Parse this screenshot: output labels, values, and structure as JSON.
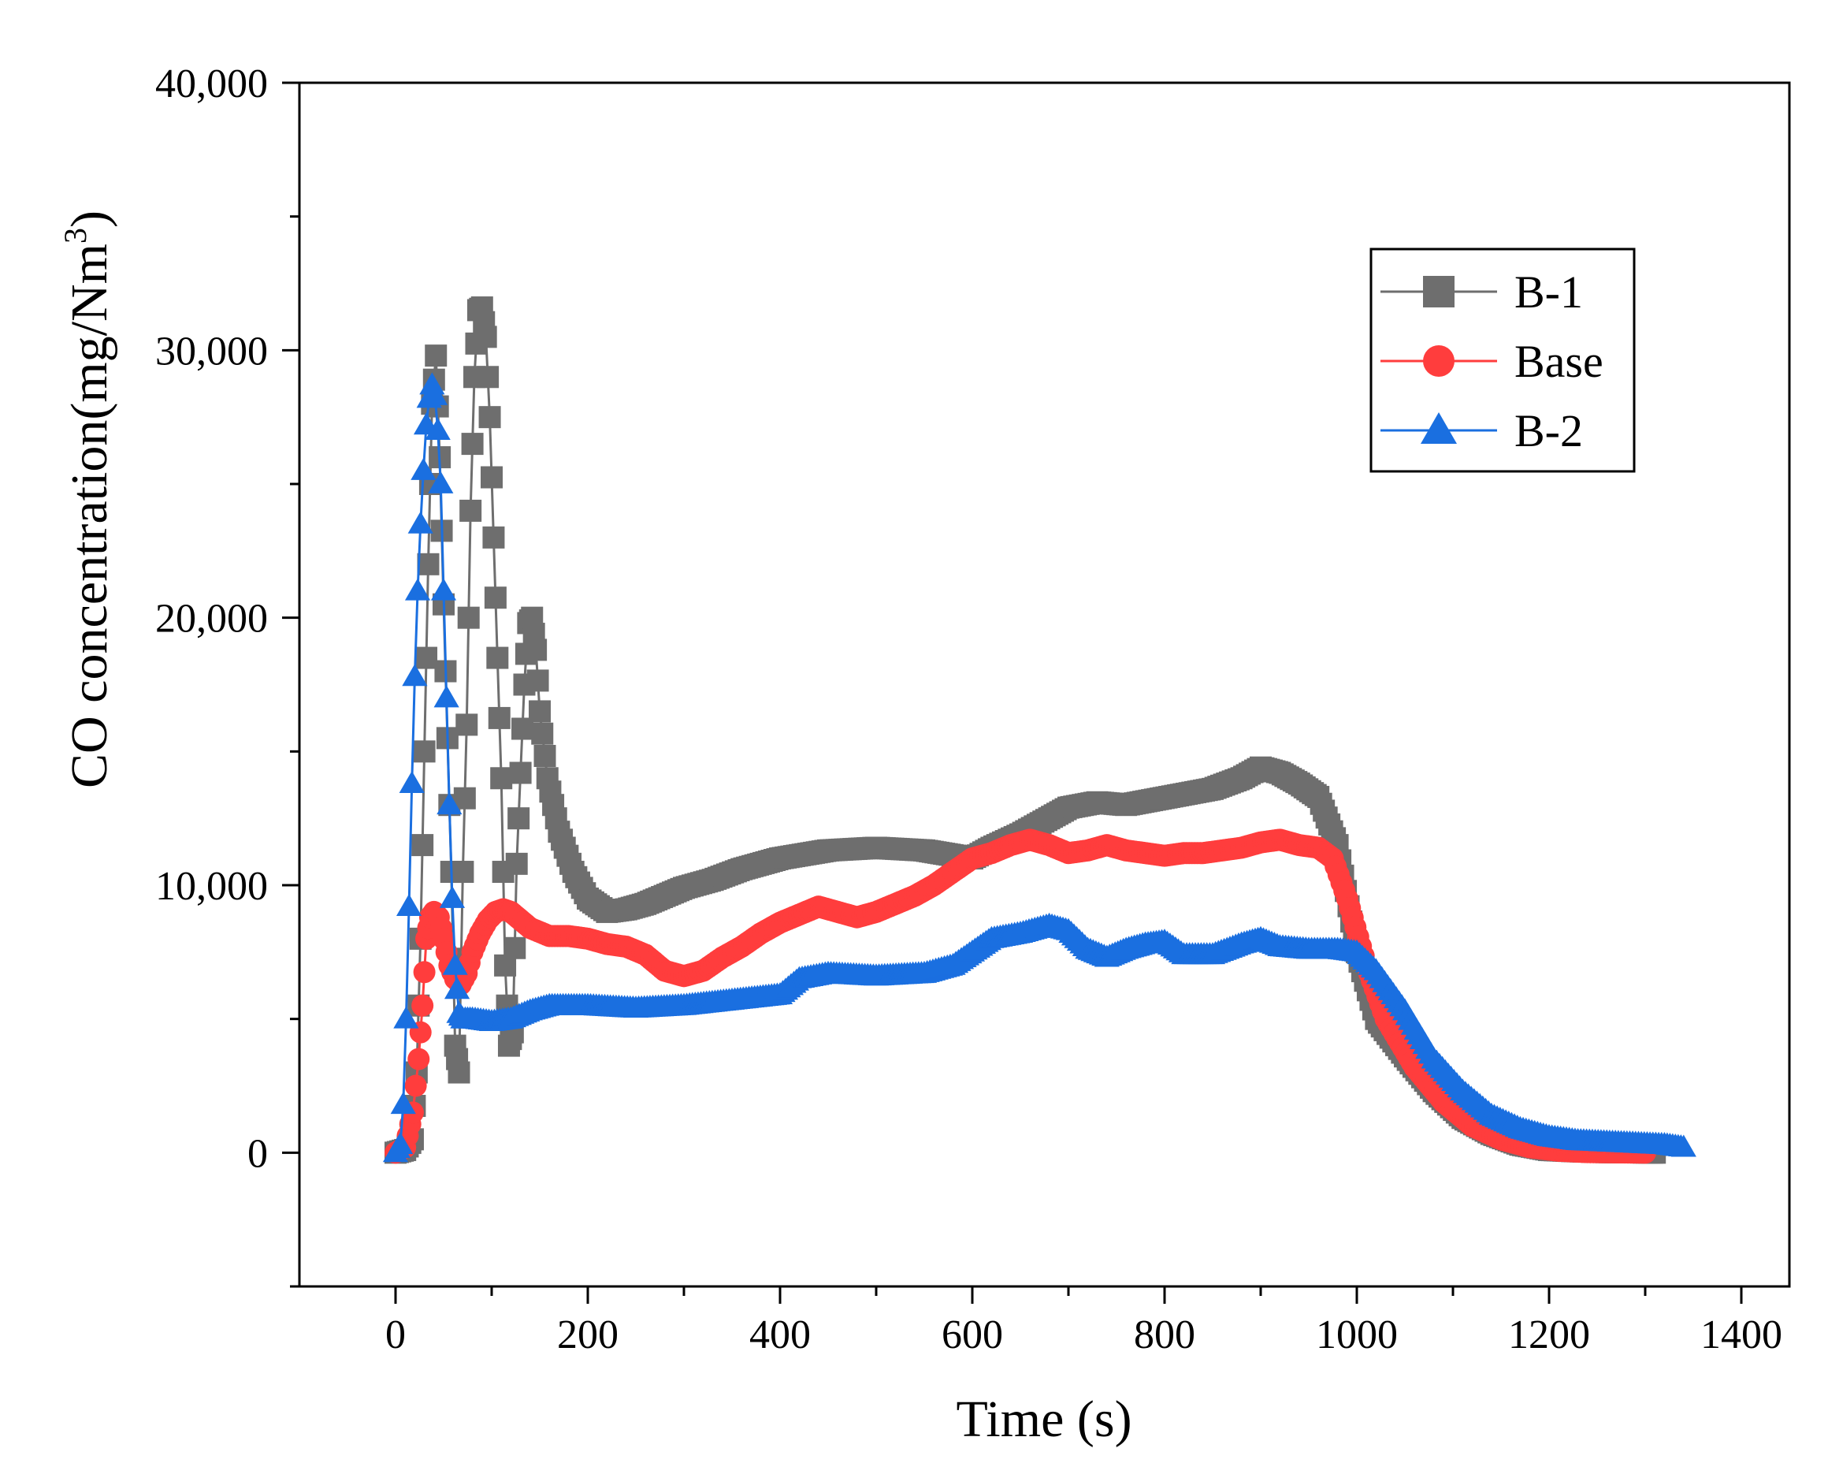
{
  "chart_data": {
    "type": "scatter",
    "title": "",
    "xlabel": "Time (s)",
    "ylabel": "CO concentration(mg/Nm",
    "ylabel_sup": "3",
    "ylabel_close": ")",
    "xlim": [
      -100,
      1450
    ],
    "ylim": [
      -5000,
      40000
    ],
    "x_ticks": [
      0,
      200,
      400,
      600,
      800,
      1000,
      1200,
      1400
    ],
    "x_tick_labels": [
      "0",
      "200",
      "400",
      "600",
      "800",
      "1000",
      "1200",
      "1400"
    ],
    "y_ticks": [
      0,
      10000,
      20000,
      30000,
      40000
    ],
    "y_tick_labels": [
      "0",
      "10,000",
      "20,000",
      "30,000",
      "40,000"
    ],
    "grid": false,
    "legend_position": "top-right",
    "series": [
      {
        "name": "B-1",
        "marker": "square",
        "color": "#6e6e6e",
        "points": [
          [
            0,
            0
          ],
          [
            10,
            100
          ],
          [
            18,
            500
          ],
          [
            22,
            3000
          ],
          [
            26,
            8000
          ],
          [
            30,
            15000
          ],
          [
            34,
            22000
          ],
          [
            38,
            28000
          ],
          [
            42,
            29800
          ],
          [
            46,
            26000
          ],
          [
            50,
            20500
          ],
          [
            54,
            15500
          ],
          [
            58,
            10500
          ],
          [
            62,
            4000
          ],
          [
            66,
            3000
          ],
          [
            70,
            10500
          ],
          [
            74,
            16000
          ],
          [
            78,
            24000
          ],
          [
            82,
            29000
          ],
          [
            86,
            31500
          ],
          [
            90,
            31600
          ],
          [
            94,
            30500
          ],
          [
            98,
            27500
          ],
          [
            102,
            23000
          ],
          [
            106,
            18500
          ],
          [
            110,
            14000
          ],
          [
            114,
            7000
          ],
          [
            118,
            4000
          ],
          [
            122,
            4500
          ],
          [
            126,
            10800
          ],
          [
            130,
            14200
          ],
          [
            134,
            17500
          ],
          [
            138,
            19800
          ],
          [
            142,
            20000
          ],
          [
            146,
            18800
          ],
          [
            150,
            16500
          ],
          [
            158,
            14000
          ],
          [
            170,
            12000
          ],
          [
            185,
            10500
          ],
          [
            200,
            9500
          ],
          [
            220,
            9000
          ],
          [
            240,
            9100
          ],
          [
            260,
            9300
          ],
          [
            280,
            9600
          ],
          [
            300,
            9900
          ],
          [
            330,
            10200
          ],
          [
            360,
            10600
          ],
          [
            400,
            11000
          ],
          [
            450,
            11300
          ],
          [
            500,
            11400
          ],
          [
            550,
            11300
          ],
          [
            600,
            11000
          ],
          [
            620,
            11400
          ],
          [
            650,
            11900
          ],
          [
            680,
            12500
          ],
          [
            700,
            12900
          ],
          [
            730,
            13100
          ],
          [
            760,
            13000
          ],
          [
            790,
            13200
          ],
          [
            820,
            13400
          ],
          [
            850,
            13600
          ],
          [
            880,
            14000
          ],
          [
            900,
            14400
          ],
          [
            920,
            14200
          ],
          [
            940,
            13800
          ],
          [
            960,
            13300
          ],
          [
            980,
            11500
          ],
          [
            1000,
            7500
          ],
          [
            1020,
            5000
          ],
          [
            1050,
            3600
          ],
          [
            1080,
            2300
          ],
          [
            1110,
            1300
          ],
          [
            1140,
            700
          ],
          [
            1170,
            300
          ],
          [
            1200,
            100
          ],
          [
            1230,
            50
          ],
          [
            1260,
            20
          ],
          [
            1290,
            10
          ],
          [
            1310,
            0
          ]
        ]
      },
      {
        "name": "Base",
        "marker": "circle",
        "color": "#ff3d3d",
        "points": [
          [
            0,
            0
          ],
          [
            10,
            200
          ],
          [
            18,
            1500
          ],
          [
            24,
            3500
          ],
          [
            28,
            5500
          ],
          [
            32,
            8000
          ],
          [
            36,
            8800
          ],
          [
            40,
            9000
          ],
          [
            45,
            8800
          ],
          [
            50,
            8000
          ],
          [
            56,
            7000
          ],
          [
            62,
            6500
          ],
          [
            68,
            6300
          ],
          [
            74,
            6700
          ],
          [
            80,
            7500
          ],
          [
            88,
            8200
          ],
          [
            96,
            8700
          ],
          [
            104,
            9000
          ],
          [
            112,
            9100
          ],
          [
            120,
            9000
          ],
          [
            130,
            8700
          ],
          [
            140,
            8400
          ],
          [
            160,
            8100
          ],
          [
            180,
            8100
          ],
          [
            200,
            8000
          ],
          [
            220,
            7800
          ],
          [
            240,
            7700
          ],
          [
            260,
            7400
          ],
          [
            280,
            6800
          ],
          [
            300,
            6600
          ],
          [
            320,
            6800
          ],
          [
            340,
            7300
          ],
          [
            360,
            7700
          ],
          [
            380,
            8200
          ],
          [
            400,
            8600
          ],
          [
            420,
            8900
          ],
          [
            440,
            9200
          ],
          [
            460,
            9000
          ],
          [
            480,
            8800
          ],
          [
            500,
            9000
          ],
          [
            520,
            9300
          ],
          [
            540,
            9600
          ],
          [
            560,
            10000
          ],
          [
            580,
            10500
          ],
          [
            600,
            11000
          ],
          [
            620,
            11200
          ],
          [
            640,
            11500
          ],
          [
            660,
            11700
          ],
          [
            680,
            11500
          ],
          [
            700,
            11200
          ],
          [
            720,
            11300
          ],
          [
            740,
            11500
          ],
          [
            760,
            11300
          ],
          [
            780,
            11200
          ],
          [
            800,
            11100
          ],
          [
            820,
            11200
          ],
          [
            840,
            11200
          ],
          [
            860,
            11300
          ],
          [
            880,
            11400
          ],
          [
            900,
            11600
          ],
          [
            920,
            11700
          ],
          [
            940,
            11500
          ],
          [
            960,
            11400
          ],
          [
            975,
            11000
          ],
          [
            990,
            9500
          ],
          [
            1010,
            7000
          ],
          [
            1030,
            5000
          ],
          [
            1060,
            3200
          ],
          [
            1090,
            1900
          ],
          [
            1120,
            1000
          ],
          [
            1150,
            500
          ],
          [
            1180,
            200
          ],
          [
            1210,
            70
          ],
          [
            1240,
            20
          ],
          [
            1270,
            10
          ],
          [
            1300,
            0
          ]
        ]
      },
      {
        "name": "B-2",
        "marker": "triangle",
        "color": "#1a6fe0",
        "points": [
          [
            0,
            0
          ],
          [
            5,
            300
          ],
          [
            8,
            1800
          ],
          [
            11,
            5000
          ],
          [
            14,
            9200
          ],
          [
            17,
            13800
          ],
          [
            20,
            17800
          ],
          [
            23,
            21000
          ],
          [
            26,
            23500
          ],
          [
            29,
            25500
          ],
          [
            32,
            27200
          ],
          [
            35,
            28200
          ],
          [
            38,
            28700
          ],
          [
            41,
            28300
          ],
          [
            44,
            27000
          ],
          [
            47,
            25000
          ],
          [
            50,
            21000
          ],
          [
            53,
            17000
          ],
          [
            56,
            13000
          ],
          [
            59,
            9500
          ],
          [
            62,
            7000
          ],
          [
            66,
            5200
          ],
          [
            70,
            5000
          ],
          [
            80,
            5000
          ],
          [
            100,
            4900
          ],
          [
            120,
            5000
          ],
          [
            140,
            5300
          ],
          [
            160,
            5500
          ],
          [
            200,
            5500
          ],
          [
            250,
            5400
          ],
          [
            300,
            5500
          ],
          [
            350,
            5700
          ],
          [
            400,
            5900
          ],
          [
            420,
            6500
          ],
          [
            450,
            6700
          ],
          [
            500,
            6600
          ],
          [
            550,
            6700
          ],
          [
            580,
            7000
          ],
          [
            600,
            7500
          ],
          [
            620,
            8000
          ],
          [
            650,
            8200
          ],
          [
            680,
            8500
          ],
          [
            700,
            8300
          ],
          [
            720,
            7600
          ],
          [
            740,
            7300
          ],
          [
            760,
            7600
          ],
          [
            780,
            7800
          ],
          [
            800,
            7900
          ],
          [
            820,
            7400
          ],
          [
            850,
            7400
          ],
          [
            880,
            7800
          ],
          [
            900,
            8000
          ],
          [
            920,
            7700
          ],
          [
            950,
            7600
          ],
          [
            980,
            7600
          ],
          [
            1000,
            7500
          ],
          [
            1020,
            6800
          ],
          [
            1050,
            5300
          ],
          [
            1080,
            3500
          ],
          [
            1110,
            2300
          ],
          [
            1140,
            1400
          ],
          [
            1170,
            900
          ],
          [
            1200,
            600
          ],
          [
            1230,
            450
          ],
          [
            1260,
            400
          ],
          [
            1290,
            350
          ],
          [
            1320,
            300
          ],
          [
            1340,
            200
          ]
        ]
      }
    ]
  }
}
